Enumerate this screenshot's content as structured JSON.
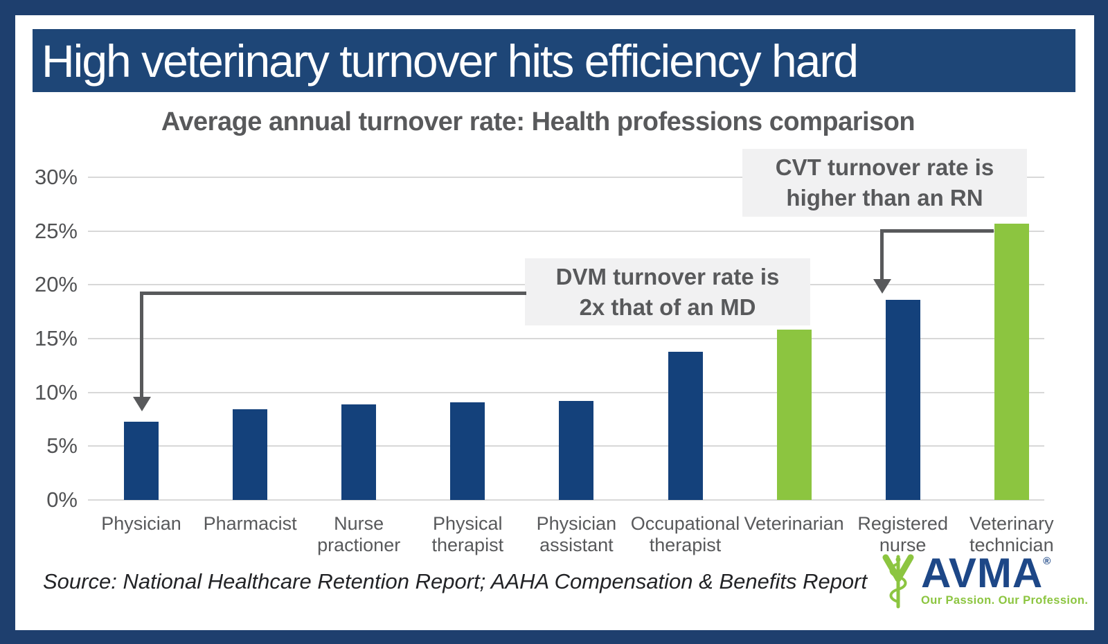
{
  "title": "High veterinary turnover hits efficiency hard",
  "subtitle": "Average annual turnover rate: Health professions comparison",
  "chart_data": {
    "type": "bar",
    "title": "Average annual turnover rate: Health professions comparison",
    "categories": [
      "Physician",
      "Pharmacist",
      "Nurse practioner",
      "Physical therapist",
      "Physician assistant",
      "Occupational therapist",
      "Veterinarian",
      "Registered nurse",
      "Veterinary technician"
    ],
    "category_label_lines": [
      [
        "Physician"
      ],
      [
        "Pharmacist"
      ],
      [
        "Nurse",
        "practioner"
      ],
      [
        "Physical",
        "therapist"
      ],
      [
        "Physician",
        "assistant"
      ],
      [
        "Occupational",
        "therapist"
      ],
      [
        "Veterinarian"
      ],
      [
        "Registered",
        "nurse"
      ],
      [
        "Veterinary",
        "technician"
      ]
    ],
    "values": [
      7.3,
      8.4,
      8.9,
      9.1,
      9.2,
      13.8,
      15.8,
      18.6,
      25.7
    ],
    "unit": "%",
    "xlabel": "",
    "ylabel": "",
    "ylim": [
      0,
      30
    ],
    "ytick_step": 5,
    "ytick_labels": [
      "0%",
      "5%",
      "10%",
      "15%",
      "20%",
      "25%",
      "30%"
    ],
    "grid": "horizontal",
    "legend": "none",
    "bar_color_default": "#14417B",
    "bar_color_highlight": "#8CC540",
    "highlighted_categories": [
      "Veterinarian",
      "Veterinary technician"
    ],
    "highlighted_indices": [
      6,
      8
    ]
  },
  "annotations": {
    "dvm": {
      "line1": "DVM turnover rate is",
      "line2": "2x that of an MD",
      "points_to": "Physician"
    },
    "cvt": {
      "line1": "CVT turnover rate is",
      "line2": "higher than an RN",
      "points_to": "Registered nurse"
    }
  },
  "source": "Source: National Healthcare Retention Report; AAHA Compensation & Benefits Report",
  "logo": {
    "wordmark": "AVMA",
    "registered_mark": "®",
    "tagline": "Our Passion. Our Profession."
  },
  "colors": {
    "frame": "#1E3F6E",
    "banner": "#1E4677",
    "background": "#FFFFFF",
    "gridline": "#D8D8D8",
    "axis_text": "#515254",
    "subtitle_text": "#58595B",
    "annotation_bg": "#F1F1F2",
    "annotation_text": "#58595B",
    "arrow": "#58595B",
    "source_text": "#222326",
    "brand_blue": "#1D4787",
    "brand_green": "#8CC540"
  }
}
